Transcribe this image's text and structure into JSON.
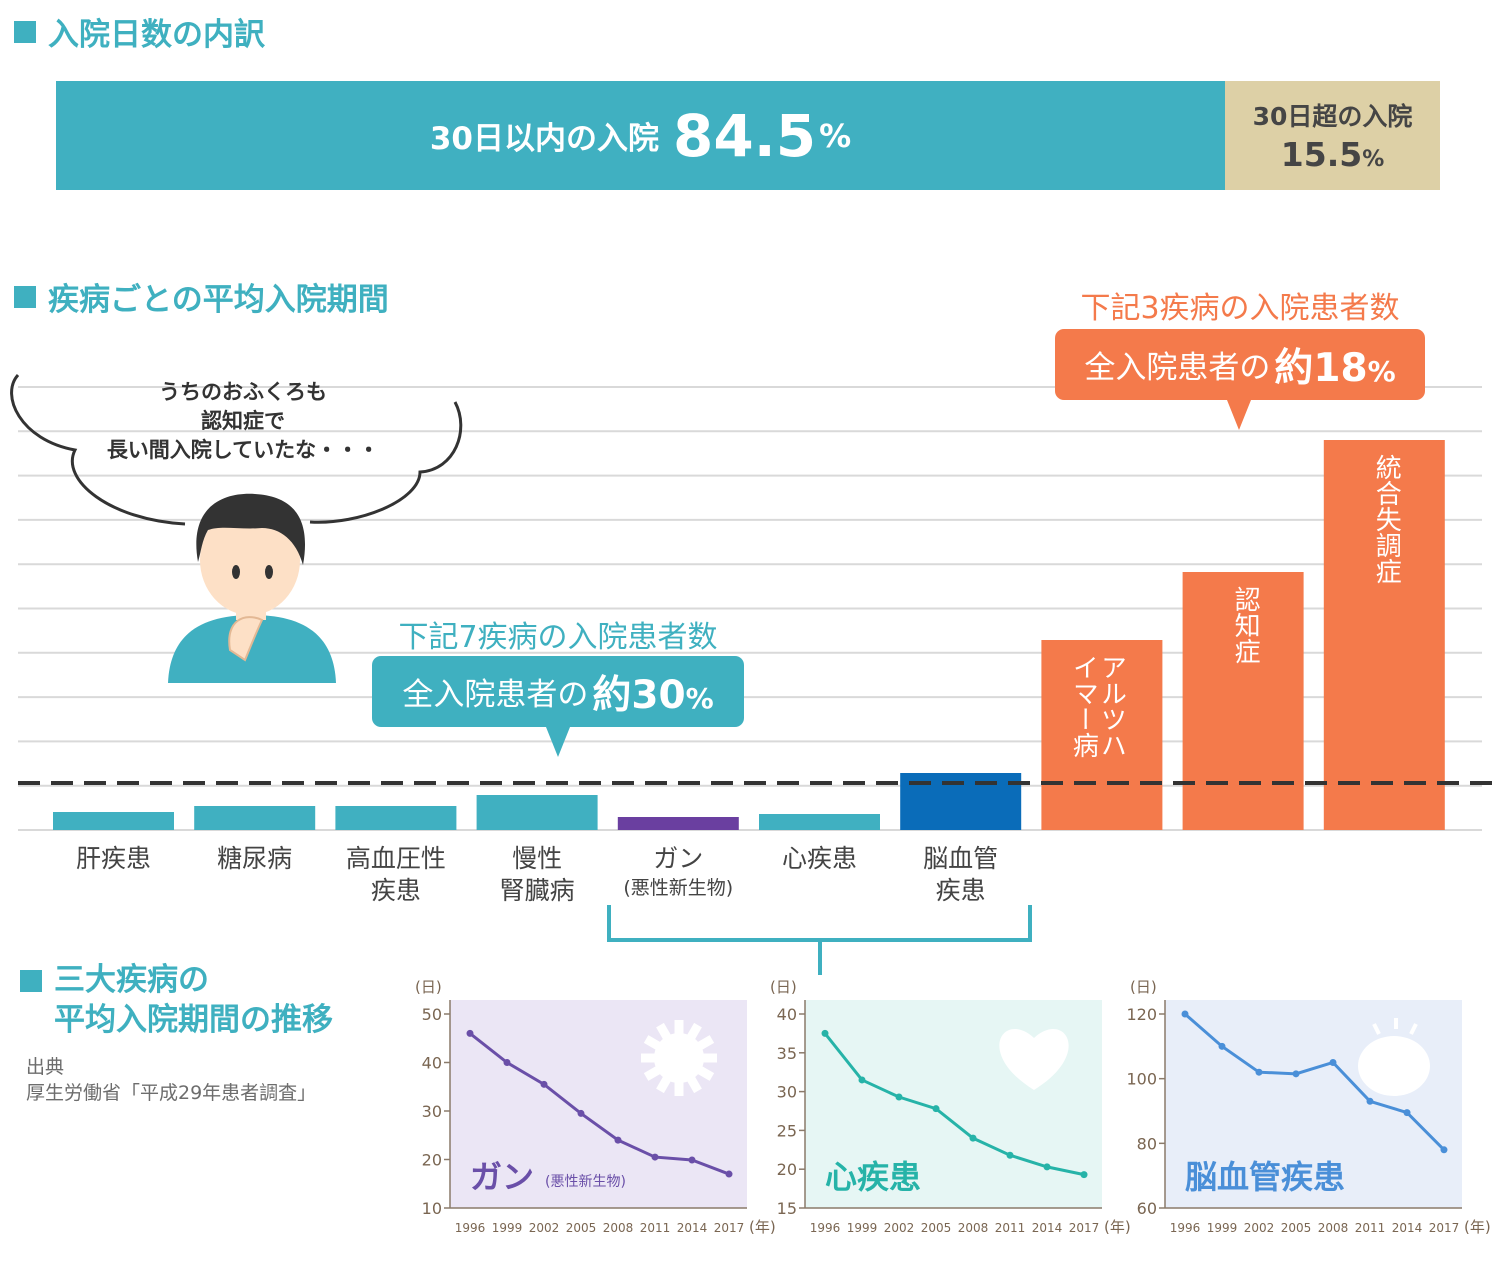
{
  "section1": {
    "title": "入院日数の内訳",
    "within_label": "30日以内の入院",
    "within_value": "84.5",
    "over_label": "30日超の入院",
    "over_value": "15.5",
    "percent_sign": "%"
  },
  "section2": {
    "title": "疾病ごとの平均入院期間",
    "thought": [
      "うちのおふくろも",
      "認知症で",
      "長い間入院していたな・・・"
    ],
    "callout_blue": {
      "caption": "下記7疾病の入院患者数",
      "prefix": "全入院患者の",
      "strong": "約30",
      "pct": "%",
      "color": "#3fb0c0"
    },
    "callout_orange": {
      "caption": "下記3疾病の入院患者数",
      "prefix": "全入院患者の",
      "strong": "約18",
      "pct": "%",
      "color": "#f47a4b"
    }
  },
  "section3": {
    "title_line1": "三大疾病の",
    "title_line2": "平均入院期間の推移",
    "source_label": "出典",
    "source_text": "厚生労働省「平成29年患者調査」",
    "unit_day": "(日)",
    "unit_year": "(年)"
  },
  "chart_data": [
    {
      "type": "bar",
      "title": "疾病ごとの平均入院期間",
      "categories": [
        "肝疾患",
        "糖尿病",
        "高血圧性疾患",
        "慢性腎臓病",
        "ガン(悪性新生物)",
        "心疾患",
        "脳血管疾患",
        "アルツハイマー病",
        "認知症",
        "統合失調症"
      ],
      "category_lines": [
        [
          "肝疾患"
        ],
        [
          "糖尿病"
        ],
        [
          "高血圧性",
          "疾患"
        ],
        [
          "慢性",
          "腎臓病"
        ],
        [
          "ガン"
        ],
        [
          "心疾患"
        ],
        [
          "脳血管",
          "疾患"
        ],
        [],
        [],
        []
      ],
      "category_sublabels": [
        "",
        "",
        "",
        "",
        "(悪性新生物)",
        "",
        "",
        "",
        "",
        ""
      ],
      "bar_text": [
        "",
        "",
        "",
        "",
        "",
        "",
        "",
        "アルツハイマー病",
        "認知症",
        "統合失調症"
      ],
      "values": [
        18,
        24,
        24,
        35,
        13,
        16,
        57,
        190,
        258,
        390
      ],
      "colors": [
        "#40b0c1",
        "#40b0c1",
        "#40b0c1",
        "#40b0c1",
        "#6a3fa0",
        "#40b0c1",
        "#0a6cb9",
        "#f47a4b",
        "#f47a4b",
        "#f47a4b"
      ],
      "reference_line": 50,
      "ylim": [
        0,
        420
      ],
      "grid": true
    },
    {
      "type": "line",
      "name": "ガン",
      "sub": "(悪性新生物)",
      "x": [
        "1996",
        "1999",
        "2002",
        "2005",
        "2008",
        "2011",
        "2014",
        "2017"
      ],
      "values": [
        46,
        40,
        35.5,
        29.5,
        24,
        20.5,
        19.9,
        17
      ],
      "ylim": [
        10,
        50
      ],
      "yticks": [
        10,
        20,
        30,
        40,
        50
      ],
      "color": "#6a4fa8",
      "bg": "#ebe6f5"
    },
    {
      "type": "line",
      "name": "心疾患",
      "sub": "",
      "x": [
        "1996",
        "1999",
        "2002",
        "2005",
        "2008",
        "2011",
        "2014",
        "2017"
      ],
      "values": [
        37.5,
        31.5,
        29.3,
        27.8,
        24,
        21.8,
        20.3,
        19.3
      ],
      "ylim": [
        15,
        40
      ],
      "yticks": [
        15,
        20,
        25,
        30,
        35,
        40
      ],
      "color": "#26b3a8",
      "bg": "#e6f6f4"
    },
    {
      "type": "line",
      "name": "脳血管疾患",
      "sub": "",
      "x": [
        "1996",
        "1999",
        "2002",
        "2005",
        "2008",
        "2011",
        "2014",
        "2017"
      ],
      "values": [
        120,
        110,
        102,
        101.5,
        105,
        93,
        89.5,
        78
      ],
      "ylim": [
        60,
        120
      ],
      "yticks": [
        60,
        80,
        100,
        120
      ],
      "color": "#4a8fd8",
      "bg": "#e8eef9"
    }
  ]
}
